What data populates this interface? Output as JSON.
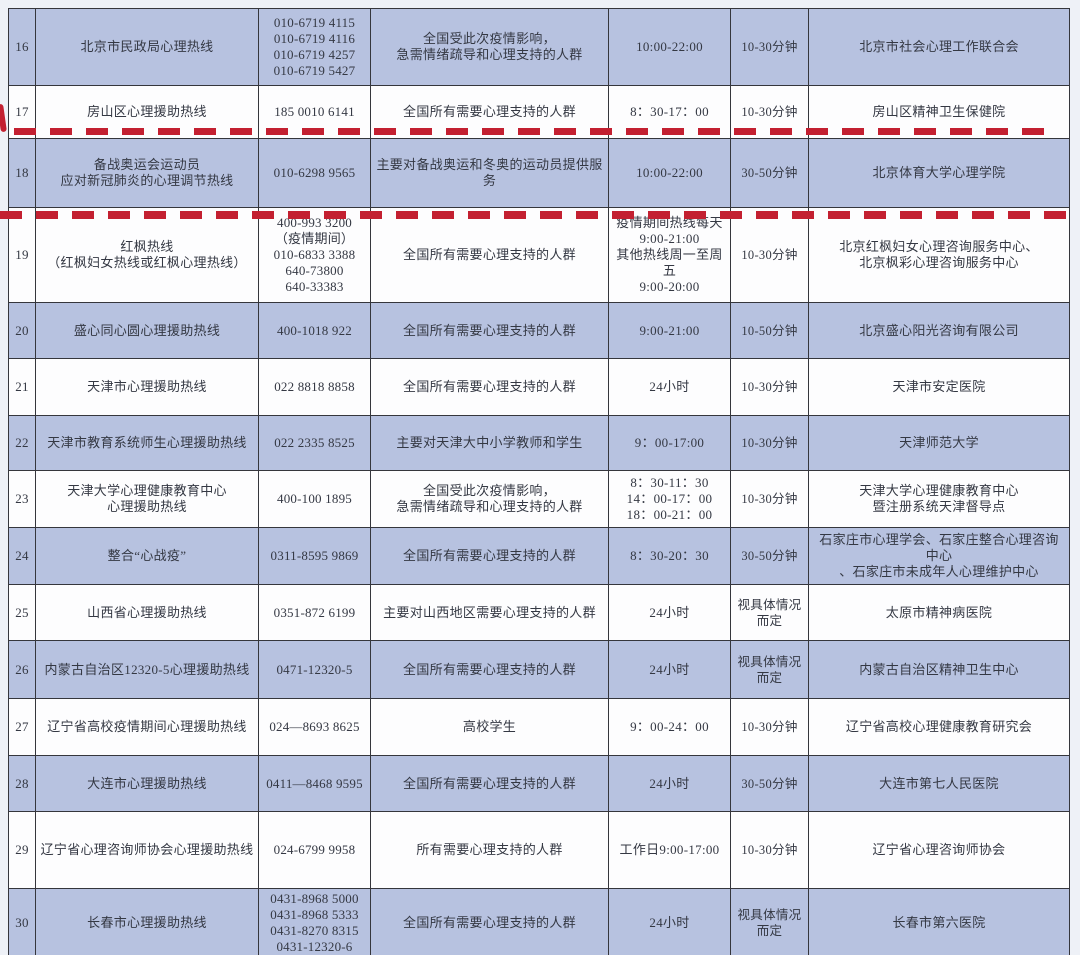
{
  "table": {
    "rows": [
      {
        "num": "16",
        "name": "北京市民政局心理热线",
        "phone": "010-6719 4115\n010-6719 4116\n010-6719 4257\n010-6719 5427",
        "audience": "全国受此次疫情影响，\n急需情绪疏导和心理支持的人群",
        "hours": "10:00-22:00",
        "duration": "10-30分钟",
        "org": "北京市社会心理工作联合会"
      },
      {
        "num": "17",
        "name": "房山区心理援助热线",
        "phone": "185 0010 6141",
        "audience": "全国所有需要心理支持的人群",
        "hours": "8：30-17：00",
        "duration": "10-30分钟",
        "org": "房山区精神卫生保健院"
      },
      {
        "num": "18",
        "name": "备战奥运会运动员\n应对新冠肺炎的心理调节热线",
        "phone": "010-6298 9565",
        "audience": "主要对备战奥运和冬奥的运动员提供服\n务",
        "hours": "10:00-22:00",
        "duration": "30-50分钟",
        "org": "北京体育大学心理学院"
      },
      {
        "num": "19",
        "name": "红枫热线\n（红枫妇女热线或红枫心理热线）",
        "phone": "400-993 3200\n（疫情期间）\n010-6833 3388\n640-73800\n640-33383",
        "audience": "全国所有需要心理支持的人群",
        "hours": "疫情期间热线每天\n9:00-21:00\n其他热线周一至周五\n9:00-20:00",
        "duration": "10-30分钟",
        "org": "北京红枫妇女心理咨询服务中心、\n北京枫彩心理咨询服务中心"
      },
      {
        "num": "20",
        "name": "盛心同心圆心理援助热线",
        "phone": "400-1018 922",
        "audience": "全国所有需要心理支持的人群",
        "hours": "9:00-21:00",
        "duration": "10-50分钟",
        "org": "北京盛心阳光咨询有限公司"
      },
      {
        "num": "21",
        "name": "天津市心理援助热线",
        "phone": "022 8818 8858",
        "audience": "全国所有需要心理支持的人群",
        "hours": "24小时",
        "duration": "10-30分钟",
        "org": "天津市安定医院"
      },
      {
        "num": "22",
        "name": "天津市教育系统师生心理援助热线",
        "phone": "022 2335 8525",
        "audience": "主要对天津大中小学教师和学生",
        "hours": "9：00-17:00",
        "duration": "10-30分钟",
        "org": "天津师范大学"
      },
      {
        "num": "23",
        "name": "天津大学心理健康教育中心\n心理援助热线",
        "phone": "400-100 1895",
        "audience": "全国受此次疫情影响，\n急需情绪疏导和心理支持的人群",
        "hours": "8：30-11：30\n14：00-17：00\n18：00-21：00",
        "duration": "10-30分钟",
        "org": "天津大学心理健康教育中心\n暨注册系统天津督导点"
      },
      {
        "num": "24",
        "name": "整合“心战疫”",
        "phone": "0311-8595 9869",
        "audience": "全国所有需要心理支持的人群",
        "hours": "8：30-20：30",
        "duration": "30-50分钟",
        "org": "石家庄市心理学会、石家庄整合心理咨询中心\n、石家庄市未成年人心理维护中心"
      },
      {
        "num": "25",
        "name": "山西省心理援助热线",
        "phone": "0351-872 6199",
        "audience": "主要对山西地区需要心理支持的人群",
        "hours": "24小时",
        "duration": "视具体情况\n而定",
        "org": "太原市精神病医院"
      },
      {
        "num": "26",
        "name": "内蒙古自治区12320-5心理援助热线",
        "phone": "0471-12320-5",
        "audience": "全国所有需要心理支持的人群",
        "hours": "24小时",
        "duration": "视具体情况\n而定",
        "org": "内蒙古自治区精神卫生中心"
      },
      {
        "num": "27",
        "name": "辽宁省高校疫情期间心理援助热线",
        "phone": "024—8693 8625",
        "audience": "高校学生",
        "hours": "9：00-24：00",
        "duration": "10-30分钟",
        "org": "辽宁省高校心理健康教育研究会"
      },
      {
        "num": "28",
        "name": "大连市心理援助热线",
        "phone": "0411—8468 9595",
        "audience": "全国所有需要心理支持的人群",
        "hours": "24小时",
        "duration": "30-50分钟",
        "org": "大连市第七人民医院"
      },
      {
        "num": "29",
        "name": "辽宁省心理咨询师协会心理援助热线",
        "phone": "024-6799 9958",
        "audience": "所有需要心理支持的人群",
        "hours": "工作日9:00-17:00",
        "duration": "10-30分钟",
        "org": "辽宁省心理咨询师协会"
      },
      {
        "num": "30",
        "name": "长春市心理援助热线",
        "phone": "0431-8968 5000\n0431-8968 5333\n0431-8270 8315\n0431-12320-6",
        "audience": "全国所有需要心理支持的人群",
        "hours": "24小时",
        "duration": "视具体情况\n而定",
        "org": "长春市第六医院"
      }
    ]
  },
  "annotations": {
    "dashed_line_top": "red-dashed-line",
    "dashed_line_bottom": "red-dashed-line",
    "edge_mark": "red-edge-mark",
    "annotation_color": "#c32031"
  },
  "colors": {
    "row_shade": "#b7c2e0",
    "row_plain": "#fdfdfe",
    "border": "#35363c",
    "text": "#343843"
  }
}
